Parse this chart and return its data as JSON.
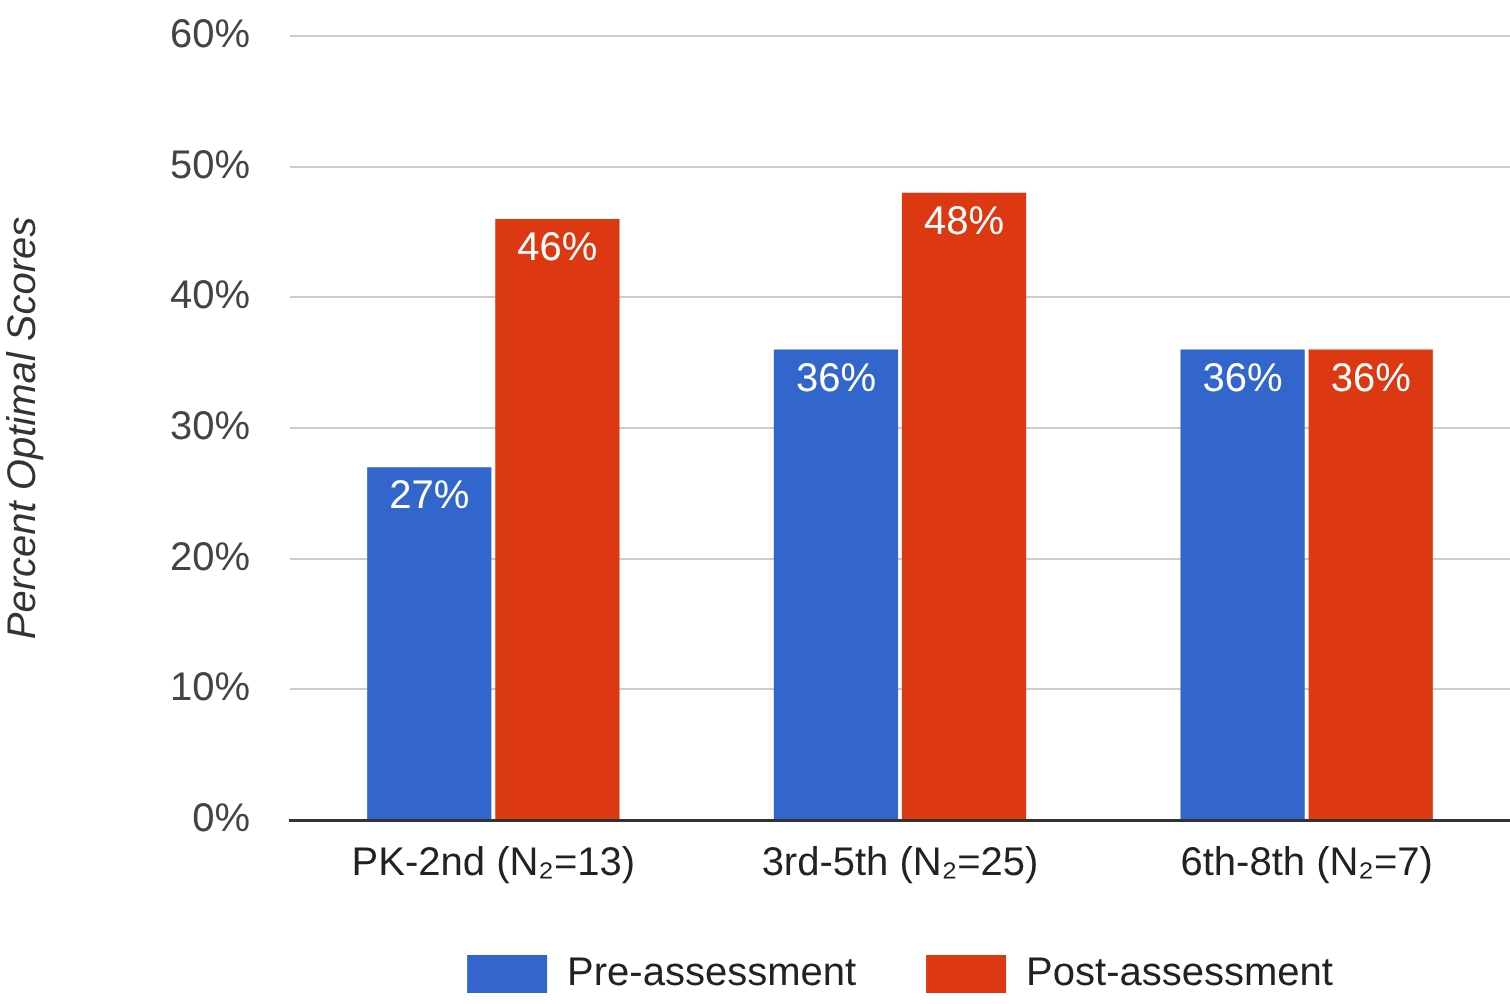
{
  "chart_data": {
    "type": "bar",
    "ylabel": "Percent Optimal Scores",
    "categories": [
      "PK-2nd (N₂=13)",
      "3rd-5th (N₂=25)",
      "6th-8th (N₂=7)"
    ],
    "series": [
      {
        "name": "Pre-assessment",
        "color": "#3366cc",
        "values": [
          27,
          36,
          36
        ],
        "value_labels": [
          "27%",
          "36%",
          "36%"
        ]
      },
      {
        "name": "Post-assessment",
        "color": "#dc3912",
        "values": [
          46,
          48,
          36
        ],
        "value_labels": [
          "46%",
          "48%",
          "36%"
        ]
      }
    ],
    "ylim": [
      0,
      60
    ],
    "yticks": [
      {
        "value": 0,
        "label": "0%"
      },
      {
        "value": 10,
        "label": "10%"
      },
      {
        "value": 20,
        "label": "20%"
      },
      {
        "value": 30,
        "label": "30%"
      },
      {
        "value": 40,
        "label": "40%"
      },
      {
        "value": 50,
        "label": "50%"
      },
      {
        "value": 60,
        "label": "60%"
      }
    ],
    "grid": "y",
    "legend": "bottom"
  }
}
